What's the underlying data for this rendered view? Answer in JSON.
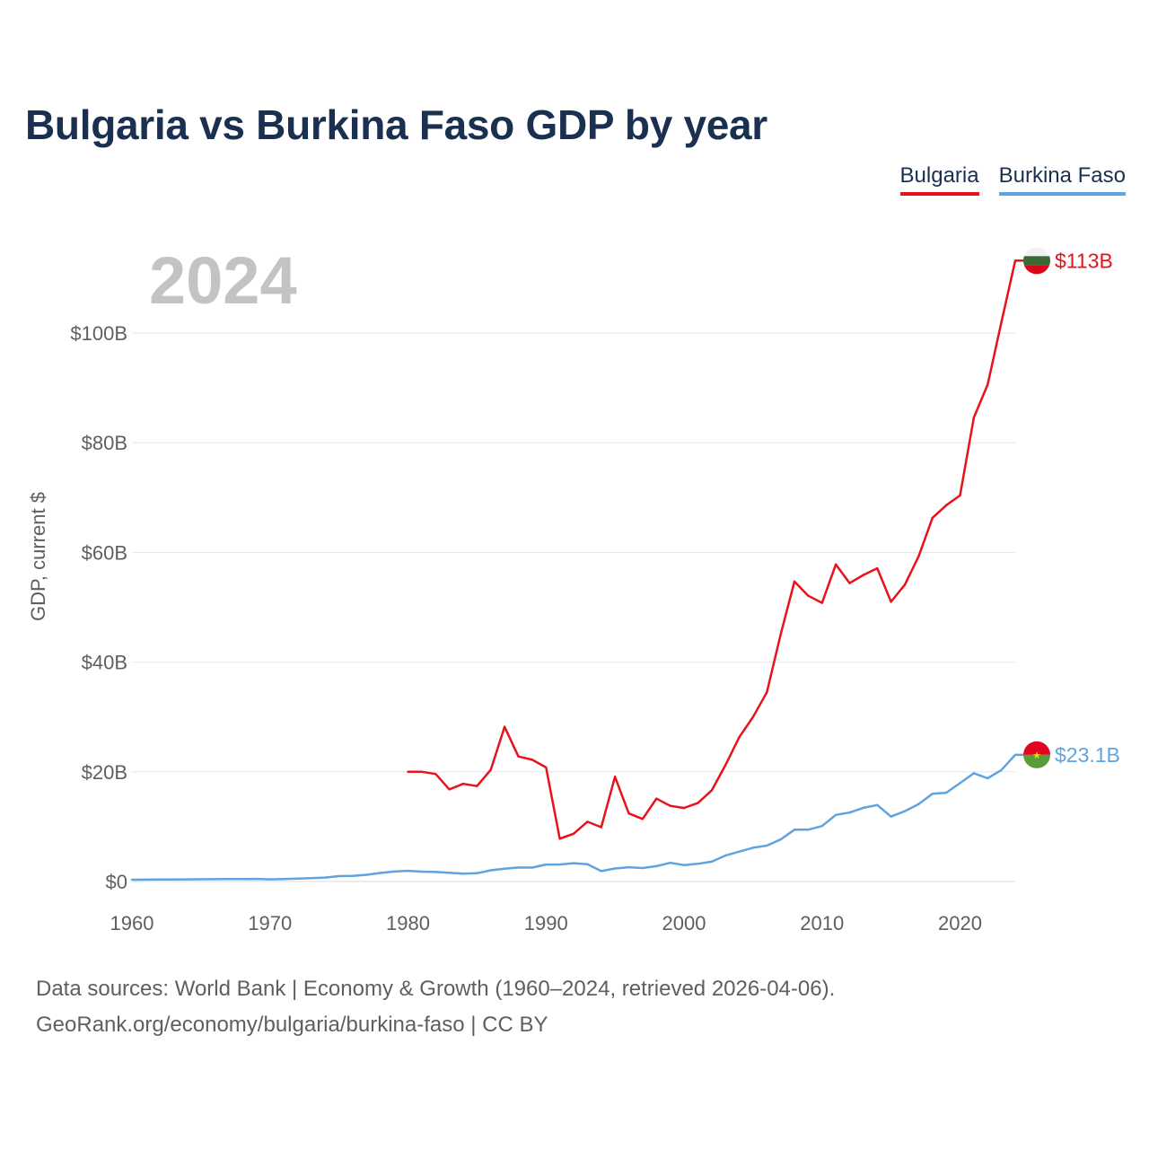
{
  "chart_data": {
    "type": "line",
    "title": "Bulgaria vs Burkina Faso GDP by year",
    "year_label": "2024",
    "ylabel": "GDP, current $",
    "xlabel": "",
    "xlim": [
      1960,
      2024
    ],
    "ylim": [
      0,
      113
    ],
    "x_ticks": [
      1960,
      1970,
      1980,
      1990,
      2000,
      2010,
      2020
    ],
    "y_ticks": [
      {
        "value": 0,
        "label": "$0"
      },
      {
        "value": 20,
        "label": "$20B"
      },
      {
        "value": 40,
        "label": "$40B"
      },
      {
        "value": 60,
        "label": "$60B"
      },
      {
        "value": 80,
        "label": "$80B"
      },
      {
        "value": 100,
        "label": "$100B"
      }
    ],
    "units": "billions of current US dollars",
    "series": [
      {
        "name": "Bulgaria",
        "color": "#e8121b",
        "end_label": "$113B",
        "flag_colors": [
          "#f2f2f2",
          "#3a6b35",
          "#d9061b"
        ],
        "x": [
          1980,
          1981,
          1982,
          1983,
          1984,
          1985,
          1986,
          1987,
          1988,
          1989,
          1990,
          1991,
          1992,
          1993,
          1994,
          1995,
          1996,
          1997,
          1998,
          1999,
          2000,
          2001,
          2002,
          2003,
          2004,
          2005,
          2006,
          2007,
          2008,
          2009,
          2010,
          2011,
          2012,
          2013,
          2014,
          2015,
          2016,
          2017,
          2018,
          2019,
          2020,
          2021,
          2022,
          2023,
          2024
        ],
        "values": [
          20.0,
          20.0,
          19.6,
          16.8,
          17.8,
          17.4,
          20.4,
          28.2,
          22.8,
          22.2,
          20.8,
          7.8,
          8.7,
          10.9,
          9.9,
          19.1,
          12.4,
          11.4,
          15.1,
          13.8,
          13.4,
          14.3,
          16.6,
          21.2,
          26.3,
          30.0,
          34.5,
          45.0,
          54.7,
          52.1,
          50.8,
          57.8,
          54.4,
          55.9,
          57.1,
          51.0,
          54.1,
          59.3,
          66.3,
          68.6,
          70.4,
          84.6,
          90.6,
          102.0,
          113.2
        ]
      },
      {
        "name": "Burkina Faso",
        "color": "#5fa3e0",
        "end_label": "$23.1B",
        "flag_colors": [
          "#e2061e",
          "#5a9c3c",
          "#fcd116"
        ],
        "x": [
          1960,
          1961,
          1962,
          1963,
          1964,
          1965,
          1966,
          1967,
          1968,
          1969,
          1970,
          1971,
          1972,
          1973,
          1974,
          1975,
          1976,
          1977,
          1978,
          1979,
          1980,
          1981,
          1982,
          1983,
          1984,
          1985,
          1986,
          1987,
          1988,
          1989,
          1990,
          1991,
          1992,
          1993,
          1994,
          1995,
          1996,
          1997,
          1998,
          1999,
          2000,
          2001,
          2002,
          2003,
          2004,
          2005,
          2006,
          2007,
          2008,
          2009,
          2010,
          2011,
          2012,
          2013,
          2014,
          2015,
          2016,
          2017,
          2018,
          2019,
          2020,
          2021,
          2022,
          2023,
          2024
        ],
        "values": [
          0.33,
          0.34,
          0.36,
          0.37,
          0.39,
          0.41,
          0.42,
          0.44,
          0.46,
          0.48,
          0.39,
          0.44,
          0.53,
          0.63,
          0.72,
          0.99,
          1.03,
          1.22,
          1.56,
          1.82,
          1.94,
          1.8,
          1.73,
          1.58,
          1.42,
          1.51,
          2.04,
          2.32,
          2.55,
          2.54,
          3.1,
          3.1,
          3.34,
          3.16,
          1.9,
          2.38,
          2.6,
          2.45,
          2.8,
          3.4,
          2.99,
          3.23,
          3.61,
          4.73,
          5.45,
          6.15,
          6.54,
          7.66,
          9.45,
          9.45,
          10.11,
          12.15,
          12.57,
          13.44,
          13.94,
          11.83,
          12.83,
          14.11,
          15.99,
          16.18,
          17.93,
          19.74,
          18.82,
          20.32,
          23.1
        ]
      }
    ]
  },
  "legend": {
    "items": [
      "Bulgaria",
      "Burkina Faso"
    ]
  },
  "footer": {
    "line1": "Data sources: World Bank | Economy & Growth (1960–2024, retrieved 2026-04-06).",
    "line2": "GeoRank.org/economy/bulgaria/burkina-faso | CC BY"
  }
}
